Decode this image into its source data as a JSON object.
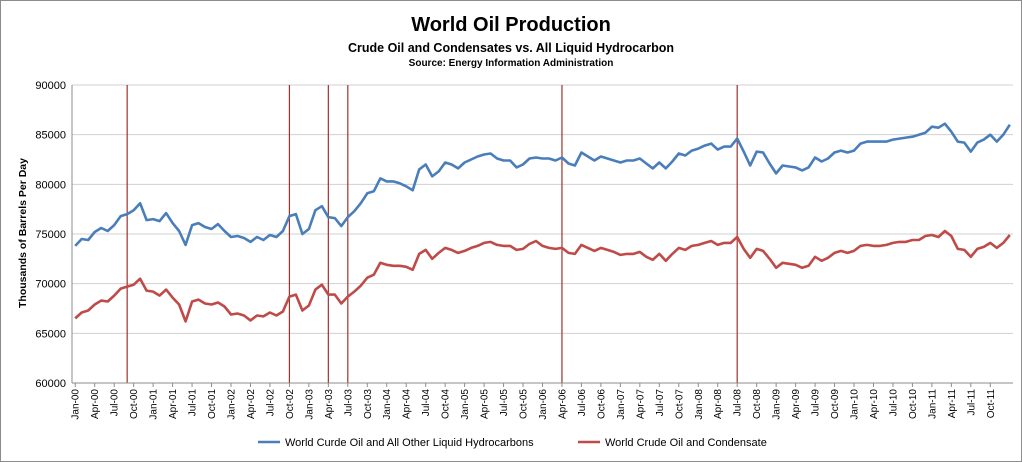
{
  "chart_data": {
    "type": "line",
    "title": "World Oil Production",
    "subtitle": "Crude Oil and Condensates vs. All Liquid Hydrocarbon",
    "source": "Source: Energy Information Administration",
    "ylabel": "Thousands of Barrels Per Day",
    "xlabel": "",
    "ylim": [
      60000,
      90000
    ],
    "y_ticks": [
      60000,
      65000,
      70000,
      75000,
      80000,
      85000,
      90000
    ],
    "x_tick_labels": [
      "Jan-00",
      "Apr-00",
      "Jul-00",
      "Oct-00",
      "Jan-01",
      "Apr-01",
      "Jul-01",
      "Oct-01",
      "Jan-02",
      "Apr-02",
      "Jul-02",
      "Oct-02",
      "Jan-03",
      "Apr-03",
      "Jul-03",
      "Oct-03",
      "Jan-04",
      "Apr-04",
      "Jul-04",
      "Oct-04",
      "Jan-05",
      "Apr-05",
      "Jul-05",
      "Oct-05",
      "Jan-06",
      "Apr-06",
      "Jul-06",
      "Oct-06",
      "Jan-07",
      "Apr-07",
      "Jul-07",
      "Oct-07",
      "Jan-08",
      "Apr-08",
      "Jul-08",
      "Oct-08",
      "Jan-09",
      "Apr-09",
      "Jul-09",
      "Oct-09",
      "Jan-10",
      "Apr-10",
      "Jul-10",
      "Oct-10",
      "Jan-11",
      "Apr-11",
      "Jul-11",
      "Oct-11"
    ],
    "x_start": "Jan-00",
    "grid": true,
    "legend_position": "bottom",
    "event_markers": [
      "Sep-00",
      "Oct-02",
      "Apr-03",
      "Jul-03",
      "Apr-06",
      "Jul-08"
    ],
    "marker_color": "#a0322e",
    "series": [
      {
        "name": "World Curde Oil and All Other Liquid Hydrocarbons",
        "color": "#4a7ebb",
        "values": [
          73800,
          74500,
          74400,
          75200,
          75600,
          75300,
          75900,
          76800,
          77000,
          77400,
          78100,
          76400,
          76500,
          76300,
          77100,
          76100,
          75300,
          73900,
          75900,
          76100,
          75700,
          75500,
          76000,
          75300,
          74700,
          74800,
          74600,
          74200,
          74700,
          74400,
          74900,
          74700,
          75300,
          76800,
          77000,
          75000,
          75500,
          77400,
          77800,
          76700,
          76600,
          75800,
          76700,
          77300,
          78100,
          79100,
          79300,
          80600,
          80300,
          80300,
          80100,
          79800,
          79400,
          81500,
          82000,
          80800,
          81300,
          82200,
          82000,
          81600,
          82200,
          82500,
          82800,
          83000,
          83100,
          82600,
          82400,
          82400,
          81700,
          82000,
          82600,
          82700,
          82600,
          82600,
          82400,
          82700,
          82100,
          81900,
          83200,
          82800,
          82400,
          82800,
          82600,
          82400,
          82200,
          82400,
          82400,
          82600,
          82100,
          81600,
          82200,
          81600,
          82300,
          83100,
          82900,
          83400,
          83600,
          83900,
          84100,
          83500,
          83800,
          83800,
          84600,
          83300,
          81900,
          83300,
          83200,
          82100,
          81100,
          81900,
          81800,
          81700,
          81400,
          81700,
          82700,
          82300,
          82600,
          83200,
          83400,
          83200,
          83400,
          84100,
          84300,
          84300,
          84300,
          84300,
          84500,
          84600,
          84700,
          84800,
          85000,
          85200,
          85800,
          85700,
          86100,
          85300,
          84300,
          84200,
          83300,
          84200,
          84500,
          85000,
          84300,
          85000,
          86000
        ]
      },
      {
        "name": "World Crude Oil and Condensate",
        "color": "#be4b48",
        "values": [
          66500,
          67100,
          67300,
          67900,
          68300,
          68200,
          68800,
          69500,
          69700,
          69900,
          70500,
          69300,
          69200,
          68800,
          69400,
          68600,
          67900,
          66200,
          68200,
          68400,
          68000,
          67900,
          68100,
          67700,
          66900,
          67000,
          66800,
          66300,
          66800,
          66700,
          67100,
          66800,
          67200,
          68700,
          68900,
          67300,
          67800,
          69400,
          69900,
          68900,
          68900,
          68000,
          68700,
          69200,
          69800,
          70600,
          70900,
          72100,
          71900,
          71800,
          71800,
          71700,
          71400,
          73000,
          73400,
          72500,
          73100,
          73600,
          73400,
          73100,
          73300,
          73600,
          73800,
          74100,
          74200,
          73900,
          73800,
          73800,
          73400,
          73500,
          74000,
          74300,
          73800,
          73600,
          73500,
          73600,
          73100,
          73000,
          73900,
          73600,
          73300,
          73600,
          73400,
          73200,
          72900,
          73000,
          73000,
          73200,
          72700,
          72400,
          73000,
          72300,
          73000,
          73600,
          73400,
          73800,
          73900,
          74100,
          74300,
          73900,
          74100,
          74100,
          74700,
          73500,
          72600,
          73500,
          73300,
          72500,
          71600,
          72100,
          72000,
          71900,
          71600,
          71800,
          72700,
          72300,
          72600,
          73100,
          73300,
          73100,
          73300,
          73800,
          73900,
          73800,
          73800,
          73900,
          74100,
          74200,
          74200,
          74400,
          74400,
          74800,
          74900,
          74700,
          75300,
          74800,
          73500,
          73400,
          72700,
          73500,
          73700,
          74100,
          73600,
          74100,
          74900
        ]
      }
    ]
  }
}
